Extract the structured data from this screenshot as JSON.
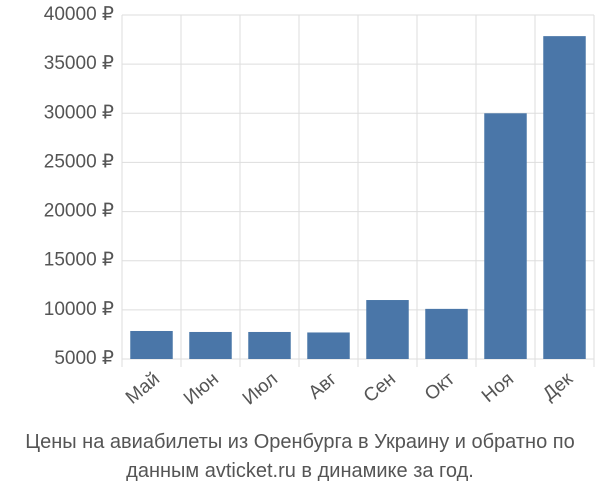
{
  "chart_data": {
    "type": "bar",
    "title": "Цены на авиабилеты из Оренбурга в Украину и обратно по данным avticket.ru в динамике за год.",
    "categories": [
      "Май",
      "Июн",
      "Июл",
      "Авг",
      "Сен",
      "Окт",
      "Ноя",
      "Дек"
    ],
    "values": [
      7850,
      7750,
      7750,
      7700,
      11000,
      10100,
      30000,
      37850
    ],
    "color": "#4a76a8",
    "ylim": [
      5000,
      40000
    ],
    "yticks": [
      {
        "value": 5000,
        "label": "5000 ₽"
      },
      {
        "value": 10000,
        "label": "10000 ₽"
      },
      {
        "value": 15000,
        "label": "15000 ₽"
      },
      {
        "value": 20000,
        "label": "20000 ₽"
      },
      {
        "value": 25000,
        "label": "25000 ₽"
      },
      {
        "value": 30000,
        "label": "30000 ₽"
      },
      {
        "value": 35000,
        "label": "35000 ₽"
      },
      {
        "value": 40000,
        "label": "40000 ₽"
      }
    ],
    "grid": true
  }
}
